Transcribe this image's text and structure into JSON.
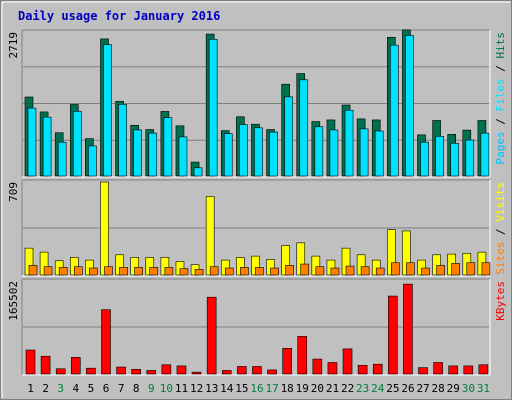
{
  "title": "Daily usage for January 2016",
  "colors": {
    "background": "#c0c0c0",
    "title": "#0000c0",
    "hits": "#007050",
    "files": "#00e0ff",
    "pages": "#00c0ff",
    "visits": "#ffff00",
    "sites": "#ff8000",
    "kbytes": "#ff0000",
    "weekend_label": "#008040",
    "weekday_label": "#000000"
  },
  "chart_data": [
    {
      "type": "bar",
      "ylabel_max": "2719",
      "legend": [
        "Pages",
        "Files",
        "Hits"
      ],
      "categories": [
        "1",
        "2",
        "3",
        "4",
        "5",
        "6",
        "7",
        "8",
        "9",
        "10",
        "11",
        "12",
        "13",
        "14",
        "15",
        "16",
        "17",
        "18",
        "19",
        "20",
        "21",
        "22",
        "23",
        "24",
        "25",
        "26",
        "27",
        "28",
        "29",
        "30",
        "31"
      ],
      "series": [
        {
          "name": "Hits",
          "values": [
            1500,
            1220,
            830,
            1360,
            720,
            2590,
            1420,
            970,
            890,
            1230,
            960,
            280,
            2680,
            870,
            1130,
            990,
            890,
            1740,
            1940,
            1040,
            1070,
            1350,
            1090,
            1070,
            2620,
            2760,
            790,
            1060,
            800,
            880,
            1060
          ]
        },
        {
          "name": "Files",
          "values": [
            1330,
            1160,
            690,
            1270,
            620,
            2520,
            1400,
            920,
            860,
            1150,
            790,
            210,
            2620,
            850,
            1020,
            960,
            880,
            1540,
            1860,
            980,
            920,
            1290,
            940,
            900,
            2510,
            2690,
            690,
            800,
            670,
            730,
            860
          ]
        },
        {
          "name": "Pages",
          "values": [
            0,
            0,
            0,
            0,
            0,
            0,
            0,
            0,
            0,
            0,
            0,
            0,
            0,
            0,
            0,
            0,
            0,
            0,
            0,
            0,
            0,
            0,
            0,
            0,
            0,
            0,
            0,
            0,
            0,
            0,
            0
          ]
        }
      ]
    },
    {
      "type": "bar",
      "ylabel_max": "709",
      "legend": [
        "Sites",
        "Visits"
      ],
      "categories": [
        "1",
        "2",
        "3",
        "4",
        "5",
        "6",
        "7",
        "8",
        "9",
        "10",
        "11",
        "12",
        "13",
        "14",
        "15",
        "16",
        "17",
        "18",
        "19",
        "20",
        "21",
        "22",
        "23",
        "24",
        "25",
        "26",
        "27",
        "28",
        "29",
        "30",
        "31"
      ],
      "series": [
        {
          "name": "Visits",
          "values": [
            210,
            180,
            115,
            140,
            120,
            709,
            160,
            140,
            140,
            140,
            110,
            85,
            600,
            120,
            140,
            150,
            125,
            230,
            250,
            150,
            120,
            210,
            160,
            120,
            350,
            340,
            120,
            160,
            165,
            170,
            180
          ]
        },
        {
          "name": "Sites",
          "values": [
            80,
            70,
            65,
            70,
            60,
            70,
            65,
            65,
            65,
            65,
            55,
            50,
            70,
            60,
            65,
            65,
            60,
            80,
            90,
            70,
            60,
            75,
            70,
            60,
            100,
            100,
            60,
            80,
            95,
            100,
            100
          ]
        }
      ]
    },
    {
      "type": "bar",
      "ylabel_max": "165502",
      "legend": [
        "KBytes"
      ],
      "categories": [
        "1",
        "2",
        "3",
        "4",
        "5",
        "6",
        "7",
        "8",
        "9",
        "10",
        "11",
        "12",
        "13",
        "14",
        "15",
        "16",
        "17",
        "18",
        "19",
        "20",
        "21",
        "22",
        "23",
        "24",
        "25",
        "26",
        "27",
        "28",
        "29",
        "30",
        "31"
      ],
      "series": [
        {
          "name": "KBytes",
          "values": [
            44000,
            33000,
            11000,
            31000,
            12000,
            115000,
            14000,
            10000,
            8000,
            18000,
            16000,
            5000,
            137000,
            8000,
            15000,
            15000,
            9000,
            47000,
            68000,
            28000,
            22000,
            46000,
            17000,
            19000,
            139000,
            160000,
            13000,
            22000,
            16000,
            16000,
            18000
          ]
        }
      ]
    }
  ],
  "weekend_days": [
    3,
    9,
    10,
    16,
    17,
    23,
    24,
    30,
    31
  ]
}
